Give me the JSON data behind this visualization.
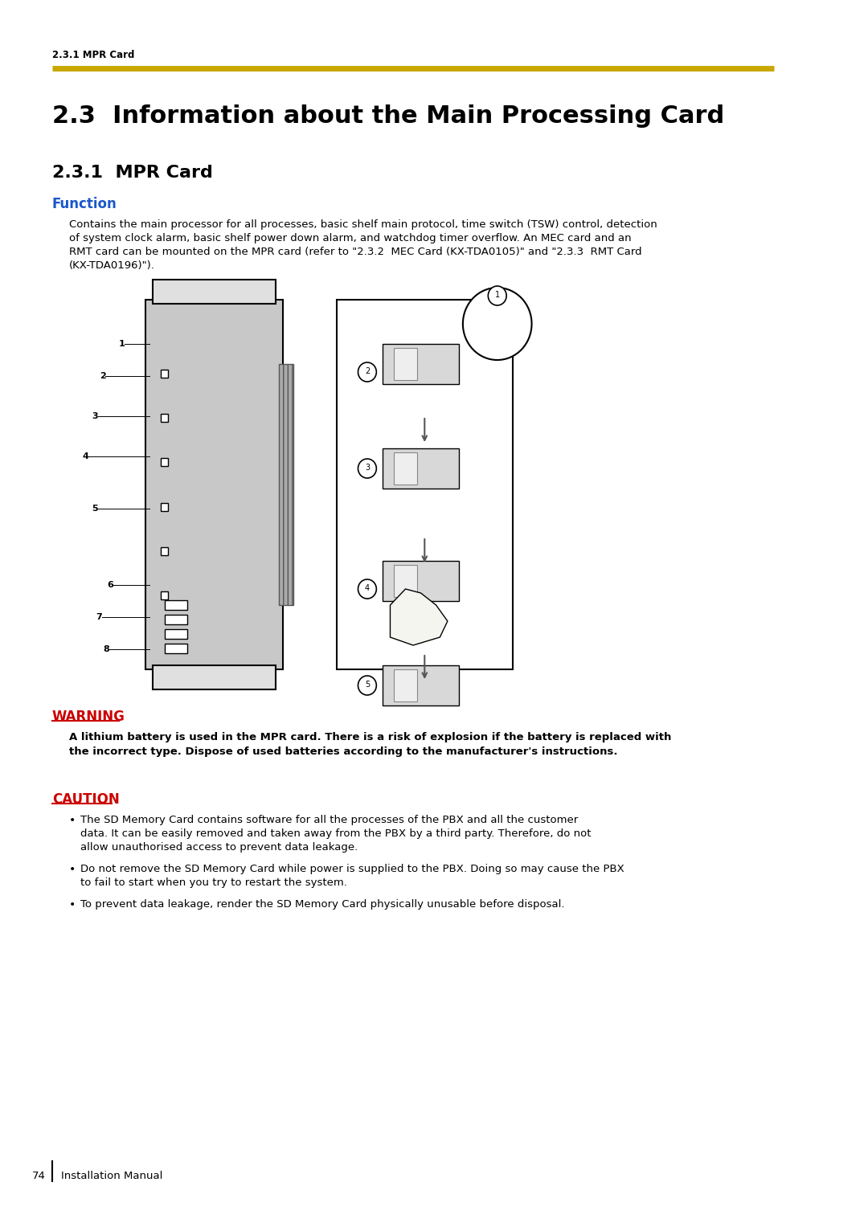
{
  "page_bg": "#ffffff",
  "header_text": "2.3.1 MPR Card",
  "header_line_color": "#c8a800",
  "main_title": "2.3  Information about the Main Processing Card",
  "section_title": "2.3.1  MPR Card",
  "function_label": "Function",
  "function_color": "#1a56cc",
  "function_text": "Contains the main processor for all processes, basic shelf main protocol, time switch (TSW) control, detection\nof system clock alarm, basic shelf power down alarm, and watchdog timer overflow. An MEC card and an\nRMT card can be mounted on the MPR card (refer to \"2.3.2  MEC Card (KX-TDA0105)\" and \"2.3.3  RMT Card\n(KX-TDA0196)\").",
  "warning_label": "WARNING",
  "warning_color": "#cc0000",
  "warning_text": "A lithium battery is used in the MPR card. There is a risk of explosion if the battery is replaced with\nthe incorrect type. Dispose of used batteries according to the manufacturer's instructions.",
  "caution_label": "CAUTION",
  "caution_color": "#cc0000",
  "caution_bullets": [
    "The SD Memory Card contains software for all the processes of the PBX and all the customer data. It can be easily removed and taken away from the PBX by a third party. Therefore, do not allow unauthorised access to prevent data leakage.",
    "Do not remove the SD Memory Card while power is supplied to the PBX. Doing so may cause the PBX to fail to start when you try to restart the system.",
    "To prevent data leakage, render the SD Memory Card physically unusable before disposal."
  ],
  "footer_page": "74",
  "footer_text": "Installation Manual",
  "footer_line_color": "#c8a800"
}
